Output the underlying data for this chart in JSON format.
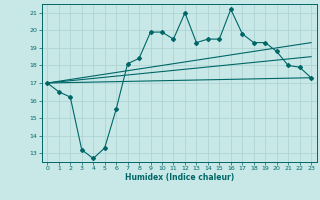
{
  "xlabel": "Humidex (Indice chaleur)",
  "bg_color": "#c8e8e8",
  "grid_color": "#b0d4d4",
  "line_color": "#006666",
  "xlim": [
    -0.5,
    23.5
  ],
  "ylim": [
    12.5,
    21.5
  ],
  "xticks": [
    0,
    1,
    2,
    3,
    4,
    5,
    6,
    7,
    8,
    9,
    10,
    11,
    12,
    13,
    14,
    15,
    16,
    17,
    18,
    19,
    20,
    21,
    22,
    23
  ],
  "yticks": [
    13,
    14,
    15,
    16,
    17,
    18,
    19,
    20,
    21
  ],
  "line1_x": [
    0,
    1,
    2,
    3,
    4,
    5,
    6,
    7,
    8,
    9,
    10,
    11,
    12,
    13,
    14,
    15,
    16,
    17,
    18,
    19,
    20,
    21,
    22,
    23
  ],
  "line1_y": [
    17.0,
    16.5,
    16.2,
    13.2,
    12.7,
    13.3,
    15.5,
    18.1,
    18.4,
    19.9,
    19.9,
    19.5,
    21.0,
    19.3,
    19.5,
    19.5,
    21.2,
    19.8,
    19.3,
    19.3,
    18.8,
    18.0,
    17.9,
    17.3
  ],
  "line2_x": [
    0,
    23
  ],
  "line2_y": [
    17.0,
    19.3
  ],
  "line3_x": [
    0,
    23
  ],
  "line3_y": [
    17.0,
    18.5
  ],
  "line4_x": [
    0,
    23
  ],
  "line4_y": [
    17.0,
    17.3
  ]
}
